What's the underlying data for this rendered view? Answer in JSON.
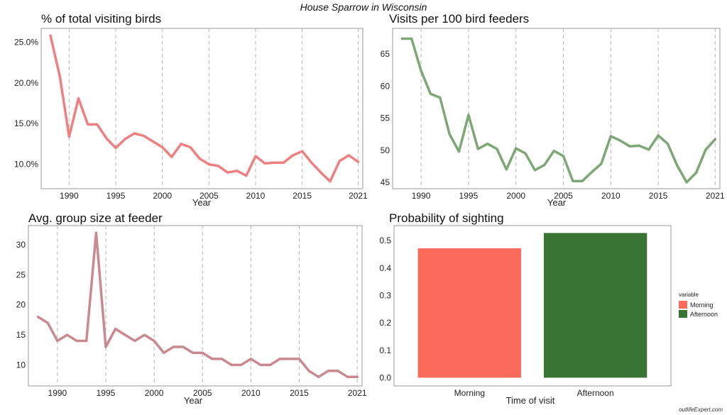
{
  "title": "House Sparrow in Wisconsin",
  "watermark": "outlifeExpert.com",
  "colors": {
    "pct": "#f08080",
    "visits": "#7da876",
    "group": "#c9898f",
    "morning": "#fa6b5c",
    "afternoon": "#3a7434"
  },
  "chart_data": [
    {
      "type": "line",
      "title": "% of total visiting birds",
      "xlabel": "Year",
      "ylabel": "",
      "x_ticks": [
        "1990",
        "1995",
        "2000",
        "2005",
        "2010",
        "2015",
        "2021"
      ],
      "y_ticks": [
        "10.0%",
        "15.0%",
        "20.0%",
        "25.0%"
      ],
      "xlim": [
        1987,
        2021.5
      ],
      "ylim": [
        7.0,
        26.7
      ],
      "grid": "vertical dashed",
      "x": [
        1988,
        1989,
        1990,
        1991,
        1992,
        1993,
        1994,
        1995,
        1996,
        1997,
        1998,
        1999,
        2000,
        2001,
        2002,
        2003,
        2004,
        2005,
        2006,
        2007,
        2008,
        2009,
        2010,
        2011,
        2012,
        2013,
        2014,
        2015,
        2016,
        2017,
        2018,
        2019,
        2020,
        2021
      ],
      "y": [
        25.8,
        20.8,
        13.4,
        18.1,
        14.9,
        14.9,
        13.2,
        12.0,
        13.1,
        13.8,
        13.5,
        12.8,
        12.1,
        10.9,
        12.5,
        12.1,
        10.7,
        10.0,
        9.8,
        9.0,
        9.2,
        8.6,
        11.0,
        10.1,
        10.2,
        10.2,
        11.1,
        11.6,
        10.2,
        9.0,
        7.9,
        10.4,
        11.1,
        10.3
      ]
    },
    {
      "type": "line",
      "title": "Visits per 100 bird feeders",
      "xlabel": "Year",
      "ylabel": "",
      "x_ticks": [
        "1990",
        "1995",
        "2000",
        "2005",
        "2010",
        "2015",
        "2021"
      ],
      "y_ticks": [
        "45",
        "50",
        "55",
        "60",
        "65"
      ],
      "xlim": [
        1987,
        2021.5
      ],
      "ylim": [
        44,
        69
      ],
      "grid": "vertical dashed",
      "x": [
        1988,
        1989,
        1990,
        1991,
        1992,
        1993,
        1994,
        1995,
        1996,
        1997,
        1998,
        1999,
        2000,
        2001,
        2002,
        2003,
        2004,
        2005,
        2006,
        2007,
        2008,
        2009,
        2010,
        2011,
        2012,
        2013,
        2014,
        2015,
        2016,
        2017,
        2018,
        2019,
        2020,
        2021
      ],
      "y": [
        67.4,
        67.4,
        62.4,
        58.8,
        58.2,
        52.5,
        49.8,
        55.5,
        50.2,
        51.0,
        50.2,
        47.0,
        50.3,
        49.5,
        46.9,
        47.7,
        49.9,
        49.1,
        45.2,
        45.2,
        46.6,
        47.9,
        52.2,
        51.5,
        50.6,
        50.7,
        50.1,
        52.3,
        51.0,
        47.6,
        45.0,
        46.5,
        50.1,
        51.7
      ]
    },
    {
      "type": "line",
      "title": "Avg. group size at feeder",
      "xlabel": "Year",
      "ylabel": "",
      "x_ticks": [
        "1990",
        "1995",
        "2000",
        "2005",
        "2010",
        "2015",
        "2021"
      ],
      "y_ticks": [
        "10",
        "15",
        "20",
        "25",
        "30"
      ],
      "xlim": [
        1987,
        2021.5
      ],
      "ylim": [
        6.5,
        33.2
      ],
      "grid": "vertical dashed",
      "x": [
        1988,
        1989,
        1990,
        1991,
        1992,
        1993,
        1994,
        1995,
        1996,
        1997,
        1998,
        1999,
        2000,
        2001,
        2002,
        2003,
        2004,
        2005,
        2006,
        2007,
        2008,
        2009,
        2010,
        2011,
        2012,
        2013,
        2014,
        2015,
        2016,
        2017,
        2018,
        2019,
        2020,
        2021
      ],
      "y": [
        18,
        17,
        14,
        15,
        14,
        14,
        32,
        13,
        16,
        15,
        14,
        15,
        14,
        12,
        13,
        13,
        12,
        12,
        11,
        11,
        10,
        10,
        11,
        10,
        10,
        11,
        11,
        11,
        9,
        8,
        9,
        9,
        8,
        8
      ]
    },
    {
      "type": "bar",
      "title": "Probability of sighting",
      "xlabel": "Time of visit",
      "ylabel": "",
      "categories": [
        "Morning",
        "Afternoon"
      ],
      "values": [
        0.472,
        0.528
      ],
      "y_ticks": [
        "0.0",
        "0.1",
        "0.2",
        "0.3",
        "0.4",
        "0.5"
      ],
      "ylim": [
        -0.03,
        0.555
      ],
      "legend": {
        "title": "variable",
        "position": "right",
        "items": [
          "Morning",
          "Afternoon"
        ]
      }
    }
  ]
}
